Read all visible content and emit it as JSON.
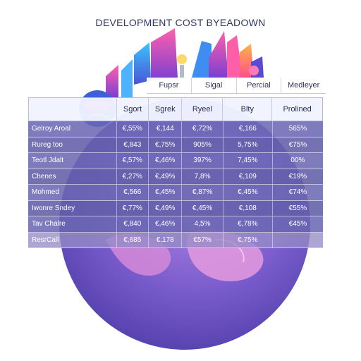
{
  "title": "DEVELOPMENT COST BYEADOWN",
  "top_headers": [
    "Fupsr",
    "Sigal",
    "Percial",
    "Medleyer"
  ],
  "column_headers": [
    "",
    "Sgort",
    "Sgrek",
    "Ryeel",
    "Blty",
    "Prolined"
  ],
  "rows": [
    {
      "label": "Gelroy Aroal",
      "values": [
        "€,55%",
        "€,144",
        "€,72%",
        "€,166",
        "565%"
      ]
    },
    {
      "label": "Rureg too",
      "values": [
        "€,843",
        "€,75%",
        "905%",
        "5,75%",
        "€75%"
      ]
    },
    {
      "label": "Teotl Jdalt",
      "values": [
        "€,57%",
        "€,46%",
        "397%",
        "7,45%",
        "00%"
      ]
    },
    {
      "label": "Chenes",
      "values": [
        "€,27%",
        "€,49%",
        "7,8%",
        "€,109",
        "€19%"
      ]
    },
    {
      "label": "Mohmed",
      "values": [
        "€,566",
        "€,45%",
        "€,87%",
        "€,45%",
        "€74%"
      ]
    },
    {
      "label": "Iwonre Sndey",
      "values": [
        "€,77%",
        "€,49%",
        "€,45%",
        "€,108",
        "€55%"
      ]
    },
    {
      "label": "Tav Chalre",
      "values": [
        "€,840",
        "€,46%",
        "4,5%",
        "€,78%",
        "€45%"
      ]
    },
    {
      "label": "ResrCall",
      "values": [
        "€,685",
        "€,178",
        "€57%",
        "€,75%",
        ""
      ]
    }
  ],
  "colors": {
    "title": "#2e3466",
    "globe_dark": "#4b3fa8",
    "globe_light": "#a77bd8",
    "row_fill": "#6a67b2"
  }
}
